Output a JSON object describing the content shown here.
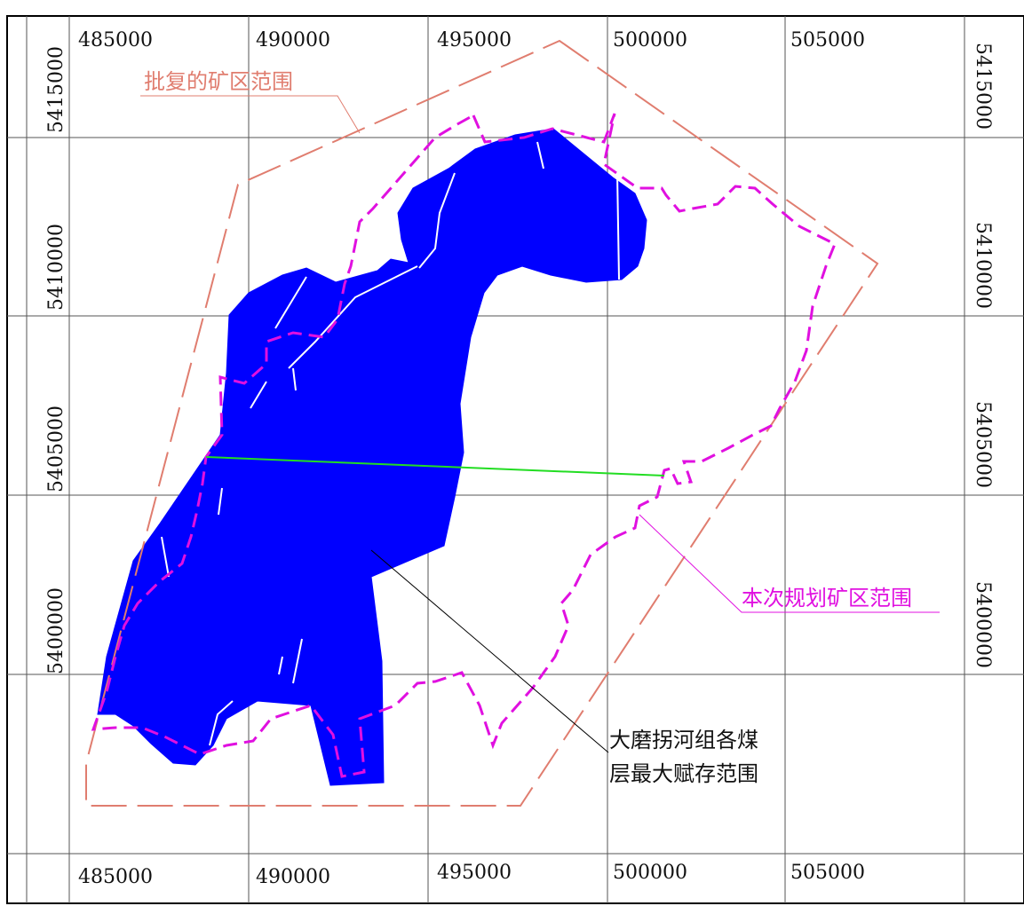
{
  "map": {
    "grid": {
      "x_ticks": [
        "485000",
        "490000",
        "495000",
        "500000",
        "505000"
      ],
      "y_ticks": [
        "5415000",
        "5410000",
        "5405000",
        "5400000"
      ]
    },
    "labels": {
      "approved_area": "批复的矿区范围",
      "planned_area": "本次规划矿区范围",
      "seam_line1": "大磨拐河组各煤",
      "seam_line2": "层最大赋存范围"
    },
    "colors": {
      "approved_boundary": "#e07d6f",
      "planned_boundary": "#e010e0",
      "coal_seam_fill": "#0000ff",
      "section_line": "#22dd22",
      "grid": "#555555"
    }
  }
}
